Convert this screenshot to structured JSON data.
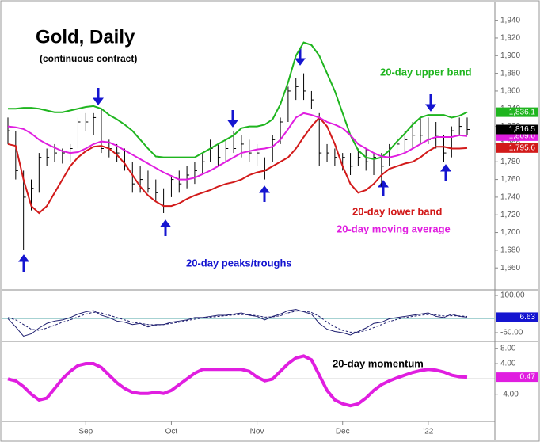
{
  "chart_data": [
    {
      "type": "ohlc",
      "title": "Gold, Daily",
      "subtitle": "(continuous contract)",
      "high": [
        1830,
        1815,
        1770,
        1760,
        1790,
        1795,
        1800,
        1795,
        1800,
        1830,
        1835,
        1835,
        1840,
        1805,
        1800,
        1795,
        1780,
        1775,
        1770,
        1760,
        1750,
        1765,
        1770,
        1775,
        1780,
        1790,
        1805,
        1800,
        1805,
        1815,
        1810,
        1805,
        1800,
        1785,
        1810,
        1830,
        1865,
        1875,
        1880,
        1860,
        1835,
        1800,
        1795,
        1790,
        1790,
        1795,
        1795,
        1790,
        1790,
        1800,
        1810,
        1815,
        1825,
        1830,
        1830,
        1825,
        1810,
        1820,
        1830,
        1830
      ],
      "low": [
        1800,
        1760,
        1680,
        1725,
        1745,
        1775,
        1780,
        1778,
        1780,
        1795,
        1815,
        1810,
        1790,
        1785,
        1780,
        1770,
        1745,
        1745,
        1745,
        1735,
        1722,
        1740,
        1745,
        1750,
        1755,
        1765,
        1780,
        1775,
        1780,
        1790,
        1785,
        1780,
        1775,
        1760,
        1780,
        1800,
        1825,
        1850,
        1850,
        1840,
        1775,
        1780,
        1775,
        1770,
        1765,
        1775,
        1770,
        1765,
        1752,
        1775,
        1790,
        1790,
        1795,
        1800,
        1800,
        1795,
        1780,
        1785,
        1810,
        1810
      ],
      "close": [
        1815,
        1770,
        1740,
        1750,
        1785,
        1785,
        1790,
        1790,
        1795,
        1825,
        1825,
        1830,
        1795,
        1795,
        1790,
        1775,
        1755,
        1760,
        1750,
        1745,
        1730,
        1760,
        1755,
        1765,
        1770,
        1780,
        1795,
        1785,
        1795,
        1795,
        1800,
        1790,
        1790,
        1770,
        1805,
        1825,
        1860,
        1865,
        1860,
        1850,
        1790,
        1790,
        1785,
        1785,
        1775,
        1785,
        1780,
        1785,
        1775,
        1795,
        1800,
        1805,
        1810,
        1810,
        1805,
        1810,
        1790,
        1815,
        1820,
        1816.5
      ],
      "close_label": "1,816.5",
      "series": [
        {
          "name": "20-day upper band",
          "color": "#1fb51f",
          "end_label": "1,836.1",
          "values": [
            1840,
            1840,
            1841,
            1841,
            1840,
            1838,
            1836,
            1836,
            1838,
            1840,
            1842,
            1843,
            1840,
            1833,
            1828,
            1822,
            1815,
            1805,
            1795,
            1786,
            1785,
            1785,
            1785,
            1785,
            1785,
            1790,
            1795,
            1800,
            1805,
            1810,
            1818,
            1820,
            1820,
            1822,
            1828,
            1845,
            1870,
            1900,
            1915,
            1912,
            1900,
            1880,
            1860,
            1835,
            1810,
            1793,
            1785,
            1783,
            1785,
            1793,
            1803,
            1812,
            1822,
            1830,
            1833,
            1833,
            1833,
            1830,
            1832,
            1836.1
          ]
        },
        {
          "name": "20-day lower band",
          "color": "#d21a1a",
          "end_label": "1,795.6",
          "values": [
            1800,
            1798,
            1760,
            1730,
            1722,
            1730,
            1745,
            1760,
            1775,
            1785,
            1792,
            1797,
            1798,
            1795,
            1788,
            1778,
            1765,
            1752,
            1742,
            1735,
            1730,
            1730,
            1733,
            1738,
            1742,
            1745,
            1748,
            1752,
            1755,
            1757,
            1760,
            1765,
            1768,
            1770,
            1775,
            1780,
            1785,
            1795,
            1808,
            1820,
            1830,
            1820,
            1800,
            1775,
            1755,
            1745,
            1748,
            1755,
            1765,
            1772,
            1775,
            1778,
            1780,
            1785,
            1792,
            1797,
            1797,
            1795,
            1795,
            1795.6
          ]
        },
        {
          "name": "20-day moving average",
          "color": "#e01ee0",
          "end_label": "1,809.0",
          "values": [
            1820,
            1819,
            1817,
            1812,
            1805,
            1800,
            1796,
            1792,
            1790,
            1791,
            1795,
            1800,
            1803,
            1802,
            1798,
            1793,
            1788,
            1783,
            1778,
            1773,
            1768,
            1764,
            1760,
            1760,
            1762,
            1766,
            1770,
            1775,
            1780,
            1785,
            1790,
            1792,
            1794,
            1795,
            1797,
            1805,
            1817,
            1830,
            1835,
            1833,
            1830,
            1825,
            1822,
            1818,
            1810,
            1800,
            1795,
            1790,
            1786,
            1785,
            1787,
            1790,
            1795,
            1800,
            1805,
            1808,
            1808,
            1808,
            1810,
            1809.0
          ]
        }
      ],
      "annotations": [
        "20-day peaks/troughs"
      ],
      "ylim": [
        1636,
        1954
      ],
      "yticks": [
        {
          "value": 1940,
          "label": "1,940"
        },
        {
          "value": 1920,
          "label": "1,920"
        },
        {
          "value": 1900,
          "label": "1,900"
        },
        {
          "value": 1880,
          "label": "1,880"
        },
        {
          "value": 1860,
          "label": "1,860"
        },
        {
          "value": 1840,
          "label": "1,840"
        },
        {
          "value": 1820,
          "label": "1,820"
        },
        {
          "value": 1800,
          "label": "1,800"
        },
        {
          "value": 1780,
          "label": "1,780"
        },
        {
          "value": 1760,
          "label": "1,760"
        },
        {
          "value": 1740,
          "label": "1,740"
        },
        {
          "value": 1720,
          "label": "1,720"
        },
        {
          "value": 1700,
          "label": "1,700"
        },
        {
          "value": 1680,
          "label": "1,680"
        },
        {
          "value": 1660,
          "label": "1,660"
        }
      ]
    },
    {
      "type": "line",
      "series": [
        {
          "color": "#1c1c6e",
          "end_label": "6.63",
          "values": [
            0,
            -35,
            -75,
            -65,
            -40,
            -20,
            -10,
            -5,
            5,
            20,
            30,
            35,
            15,
            5,
            -10,
            -15,
            -25,
            -20,
            -35,
            -25,
            -25,
            -15,
            -10,
            -5,
            5,
            5,
            10,
            15,
            15,
            20,
            25,
            15,
            10,
            -5,
            10,
            20,
            35,
            40,
            30,
            20,
            -20,
            -45,
            -55,
            -60,
            -70,
            -55,
            -40,
            -20,
            -15,
            0,
            5,
            10,
            15,
            20,
            25,
            10,
            5,
            20,
            10,
            6.63
          ]
        },
        {
          "color": "#1c1c6e",
          "dashed": true,
          "values": [
            5,
            -5,
            -25,
            -45,
            -50,
            -40,
            -28,
            -15,
            -5,
            8,
            20,
            28,
            25,
            15,
            5,
            -5,
            -15,
            -20,
            -25,
            -27,
            -25,
            -20,
            -15,
            -8,
            -2,
            3,
            7,
            10,
            13,
            16,
            18,
            17,
            13,
            7,
            8,
            13,
            25,
            33,
            33,
            27,
            10,
            -15,
            -35,
            -50,
            -58,
            -58,
            -50,
            -38,
            -25,
            -12,
            -3,
            5,
            10,
            15,
            18,
            16,
            12,
            13,
            12,
            10
          ]
        }
      ],
      "baseline": 0,
      "ylim": [
        -94,
        117
      ],
      "yticks": [
        {
          "value": 100,
          "label": "100.00"
        },
        {
          "value": -60,
          "label": "-60.00"
        }
      ]
    },
    {
      "type": "line",
      "categories": [
        null,
        null,
        null,
        null,
        null,
        null,
        null,
        null,
        null,
        null,
        "Sep",
        null,
        null,
        null,
        null,
        null,
        null,
        null,
        null,
        null,
        null,
        "Oct",
        null,
        null,
        null,
        null,
        null,
        null,
        null,
        null,
        null,
        null,
        "Nov",
        null,
        null,
        null,
        null,
        null,
        null,
        null,
        null,
        null,
        null,
        "Dec",
        null,
        null,
        null,
        null,
        null,
        null,
        null,
        null,
        null,
        null,
        "'22",
        null,
        null,
        null,
        null,
        null
      ],
      "series": [
        {
          "name": "20-day momentum",
          "color": "#e01ee0",
          "end_label": "0.47",
          "values": [
            0,
            -0.5,
            -2,
            -4,
            -5.5,
            -5,
            -2.5,
            0,
            2,
            3.5,
            4,
            4,
            3,
            1,
            -1,
            -2.5,
            -3.5,
            -3.8,
            -3.8,
            -3.5,
            -3.8,
            -3,
            -1.5,
            0,
            1.5,
            2.5,
            2.5,
            2.5,
            2.5,
            2.5,
            2.5,
            2,
            0.5,
            -0.5,
            0,
            2,
            4,
            5.5,
            6,
            5,
            1,
            -3,
            -5.5,
            -6.5,
            -7,
            -6.5,
            -5,
            -3,
            -1.5,
            -0.5,
            0.3,
            1,
            1.7,
            2.2,
            2.5,
            2.3,
            1.8,
            1,
            0.6,
            0.47
          ]
        }
      ],
      "baseline": 0,
      "ylim": [
        -11.1,
        9.6
      ],
      "yticks": [
        {
          "value": 8,
          "label": "8.00"
        },
        {
          "value": 4,
          "label": "4.00"
        },
        {
          "value": -4,
          "label": "-4.00"
        }
      ]
    }
  ]
}
